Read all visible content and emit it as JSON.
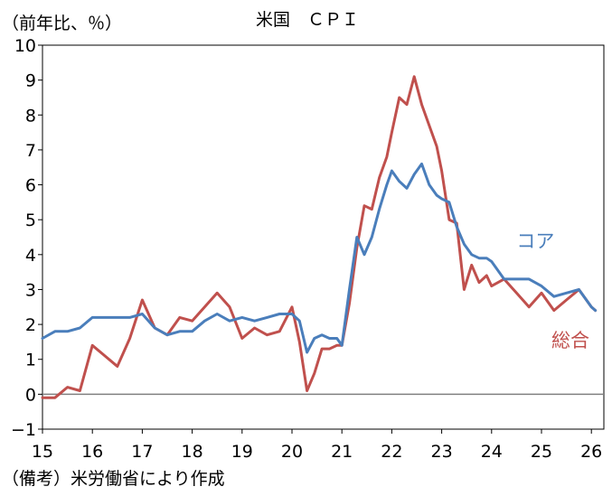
{
  "chart_data": {
    "type": "line",
    "title": "米国　ＣＰＩ",
    "ylabel": "（前年比、％）",
    "xlabel": "",
    "ylim": [
      -1,
      10
    ],
    "xlim": [
      2015,
      2026.25
    ],
    "yticks": [
      "−1",
      "0",
      "1",
      "2",
      "3",
      "4",
      "5",
      "6",
      "7",
      "8",
      "9",
      "10"
    ],
    "ytick_values": [
      -1,
      0,
      1,
      2,
      3,
      4,
      5,
      6,
      7,
      8,
      9,
      10
    ],
    "xticks": [
      "15",
      "16",
      "17",
      "18",
      "19",
      "20",
      "21",
      "22",
      "23",
      "24",
      "25",
      "26"
    ],
    "xtick_values": [
      2015,
      2016,
      2017,
      2018,
      2019,
      2020,
      2021,
      2022,
      2023,
      2024,
      2025,
      2026
    ],
    "grid": false,
    "note": "（備考）米労働省により作成",
    "series": [
      {
        "name": "コア",
        "color": "#4a7ebb",
        "x": [
          2015.0,
          2015.25,
          2015.5,
          2015.75,
          2016.0,
          2016.25,
          2016.5,
          2016.75,
          2017.0,
          2017.25,
          2017.5,
          2017.75,
          2018.0,
          2018.25,
          2018.5,
          2018.75,
          2019.0,
          2019.25,
          2019.5,
          2019.75,
          2020.0,
          2020.15,
          2020.3,
          2020.45,
          2020.6,
          2020.75,
          2020.9,
          2021.0,
          2021.15,
          2021.3,
          2021.45,
          2021.6,
          2021.75,
          2021.9,
          2022.0,
          2022.15,
          2022.3,
          2022.45,
          2022.6,
          2022.75,
          2022.9,
          2023.0,
          2023.15,
          2023.3,
          2023.45,
          2023.6,
          2023.75,
          2023.9,
          2024.0,
          2024.25,
          2024.5,
          2024.75,
          2025.0,
          2025.25,
          2025.5,
          2025.75,
          2026.0,
          2026.08
        ],
        "values": [
          1.6,
          1.8,
          1.8,
          1.9,
          2.2,
          2.2,
          2.2,
          2.2,
          2.3,
          1.9,
          1.7,
          1.8,
          1.8,
          2.1,
          2.3,
          2.1,
          2.2,
          2.1,
          2.2,
          2.3,
          2.3,
          2.1,
          1.2,
          1.6,
          1.7,
          1.6,
          1.6,
          1.4,
          3.0,
          4.5,
          4.0,
          4.5,
          5.3,
          6.0,
          6.4,
          6.1,
          5.9,
          6.3,
          6.6,
          6.0,
          5.7,
          5.6,
          5.5,
          4.8,
          4.3,
          4.0,
          3.9,
          3.9,
          3.8,
          3.3,
          3.3,
          3.3,
          3.1,
          2.8,
          2.9,
          3.0,
          2.5,
          2.4
        ]
      },
      {
        "name": "総合",
        "color": "#c0504d",
        "x": [
          2015.0,
          2015.25,
          2015.5,
          2015.75,
          2016.0,
          2016.25,
          2016.5,
          2016.75,
          2017.0,
          2017.25,
          2017.5,
          2017.75,
          2018.0,
          2018.25,
          2018.5,
          2018.75,
          2019.0,
          2019.25,
          2019.5,
          2019.75,
          2020.0,
          2020.15,
          2020.3,
          2020.45,
          2020.6,
          2020.75,
          2020.9,
          2021.0,
          2021.15,
          2021.3,
          2021.45,
          2021.6,
          2021.75,
          2021.9,
          2022.0,
          2022.15,
          2022.3,
          2022.45,
          2022.6,
          2022.75,
          2022.9,
          2023.0,
          2023.15,
          2023.3,
          2023.45,
          2023.6,
          2023.75,
          2023.9,
          2024.0,
          2024.25,
          2024.5,
          2024.75,
          2025.0,
          2025.25,
          2025.5,
          2025.75,
          2026.0,
          2026.08
        ],
        "values": [
          -0.1,
          -0.1,
          0.2,
          0.1,
          1.4,
          1.1,
          0.8,
          1.6,
          2.7,
          1.9,
          1.7,
          2.2,
          2.1,
          2.5,
          2.9,
          2.5,
          1.6,
          1.9,
          1.7,
          1.8,
          2.5,
          1.5,
          0.1,
          0.6,
          1.3,
          1.3,
          1.4,
          1.4,
          2.6,
          4.2,
          5.4,
          5.3,
          6.2,
          6.8,
          7.5,
          8.5,
          8.3,
          9.1,
          8.3,
          7.7,
          7.1,
          6.4,
          5.0,
          4.9,
          3.0,
          3.7,
          3.2,
          3.4,
          3.1,
          3.3,
          2.9,
          2.5,
          2.9,
          2.4,
          2.7,
          3.0,
          2.5,
          2.4
        ]
      }
    ],
    "annotations": [
      {
        "text": "コア",
        "series": "コア"
      },
      {
        "text": "総合",
        "series": "総合"
      }
    ]
  }
}
